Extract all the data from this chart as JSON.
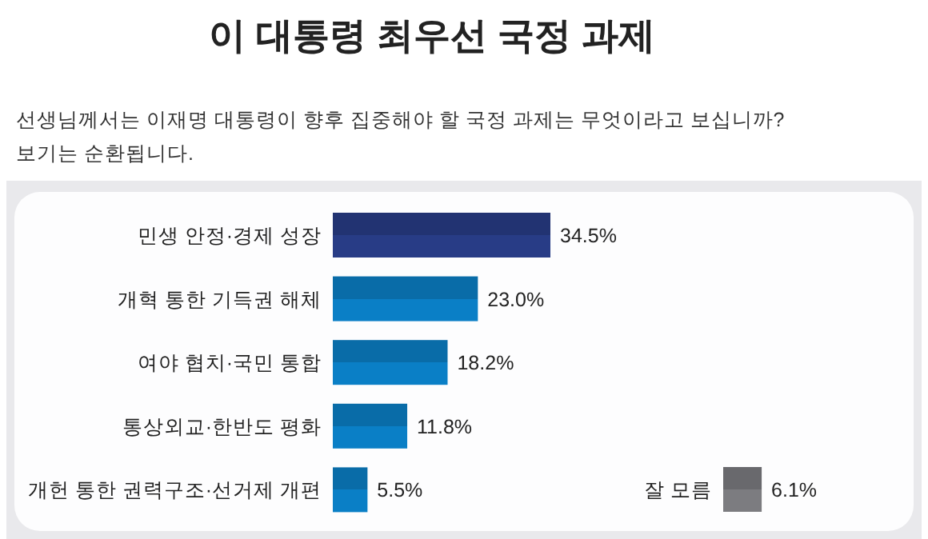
{
  "chart_data": [
    {
      "type": "bar",
      "orientation": "horizontal",
      "title": "이 대통령 최우선 국정 과제",
      "subtitle": "선생님께서는 이재명 대통령이 향후 집중해야 할 국정 과제는 무엇이라고 보십니까?",
      "annotations": [
        "보기는 순환됩니다."
      ],
      "categories": [
        "민생 안정·경제 성장",
        "개혁 통한 기득권 해체",
        "여야 협치·국민 통합",
        "통상외교·한반도 평화",
        "개헌 통한 권력구조·선거제 개편"
      ],
      "values": [
        34.5,
        23.0,
        18.2,
        11.8,
        5.5
      ],
      "value_labels": [
        "34.5%",
        "23.0%",
        "18.2%",
        "11.8%",
        "5.5%"
      ],
      "colors": [
        "#283c86",
        "#0a7fc6",
        "#0a7fc6",
        "#0a7fc6",
        "#0a7fc6"
      ]
    },
    {
      "type": "bar",
      "orientation": "horizontal",
      "categories": [
        "잘 모름"
      ],
      "values": [
        6.1
      ],
      "value_labels": [
        "6.1%"
      ],
      "colors": [
        "#7c7c80"
      ]
    }
  ]
}
